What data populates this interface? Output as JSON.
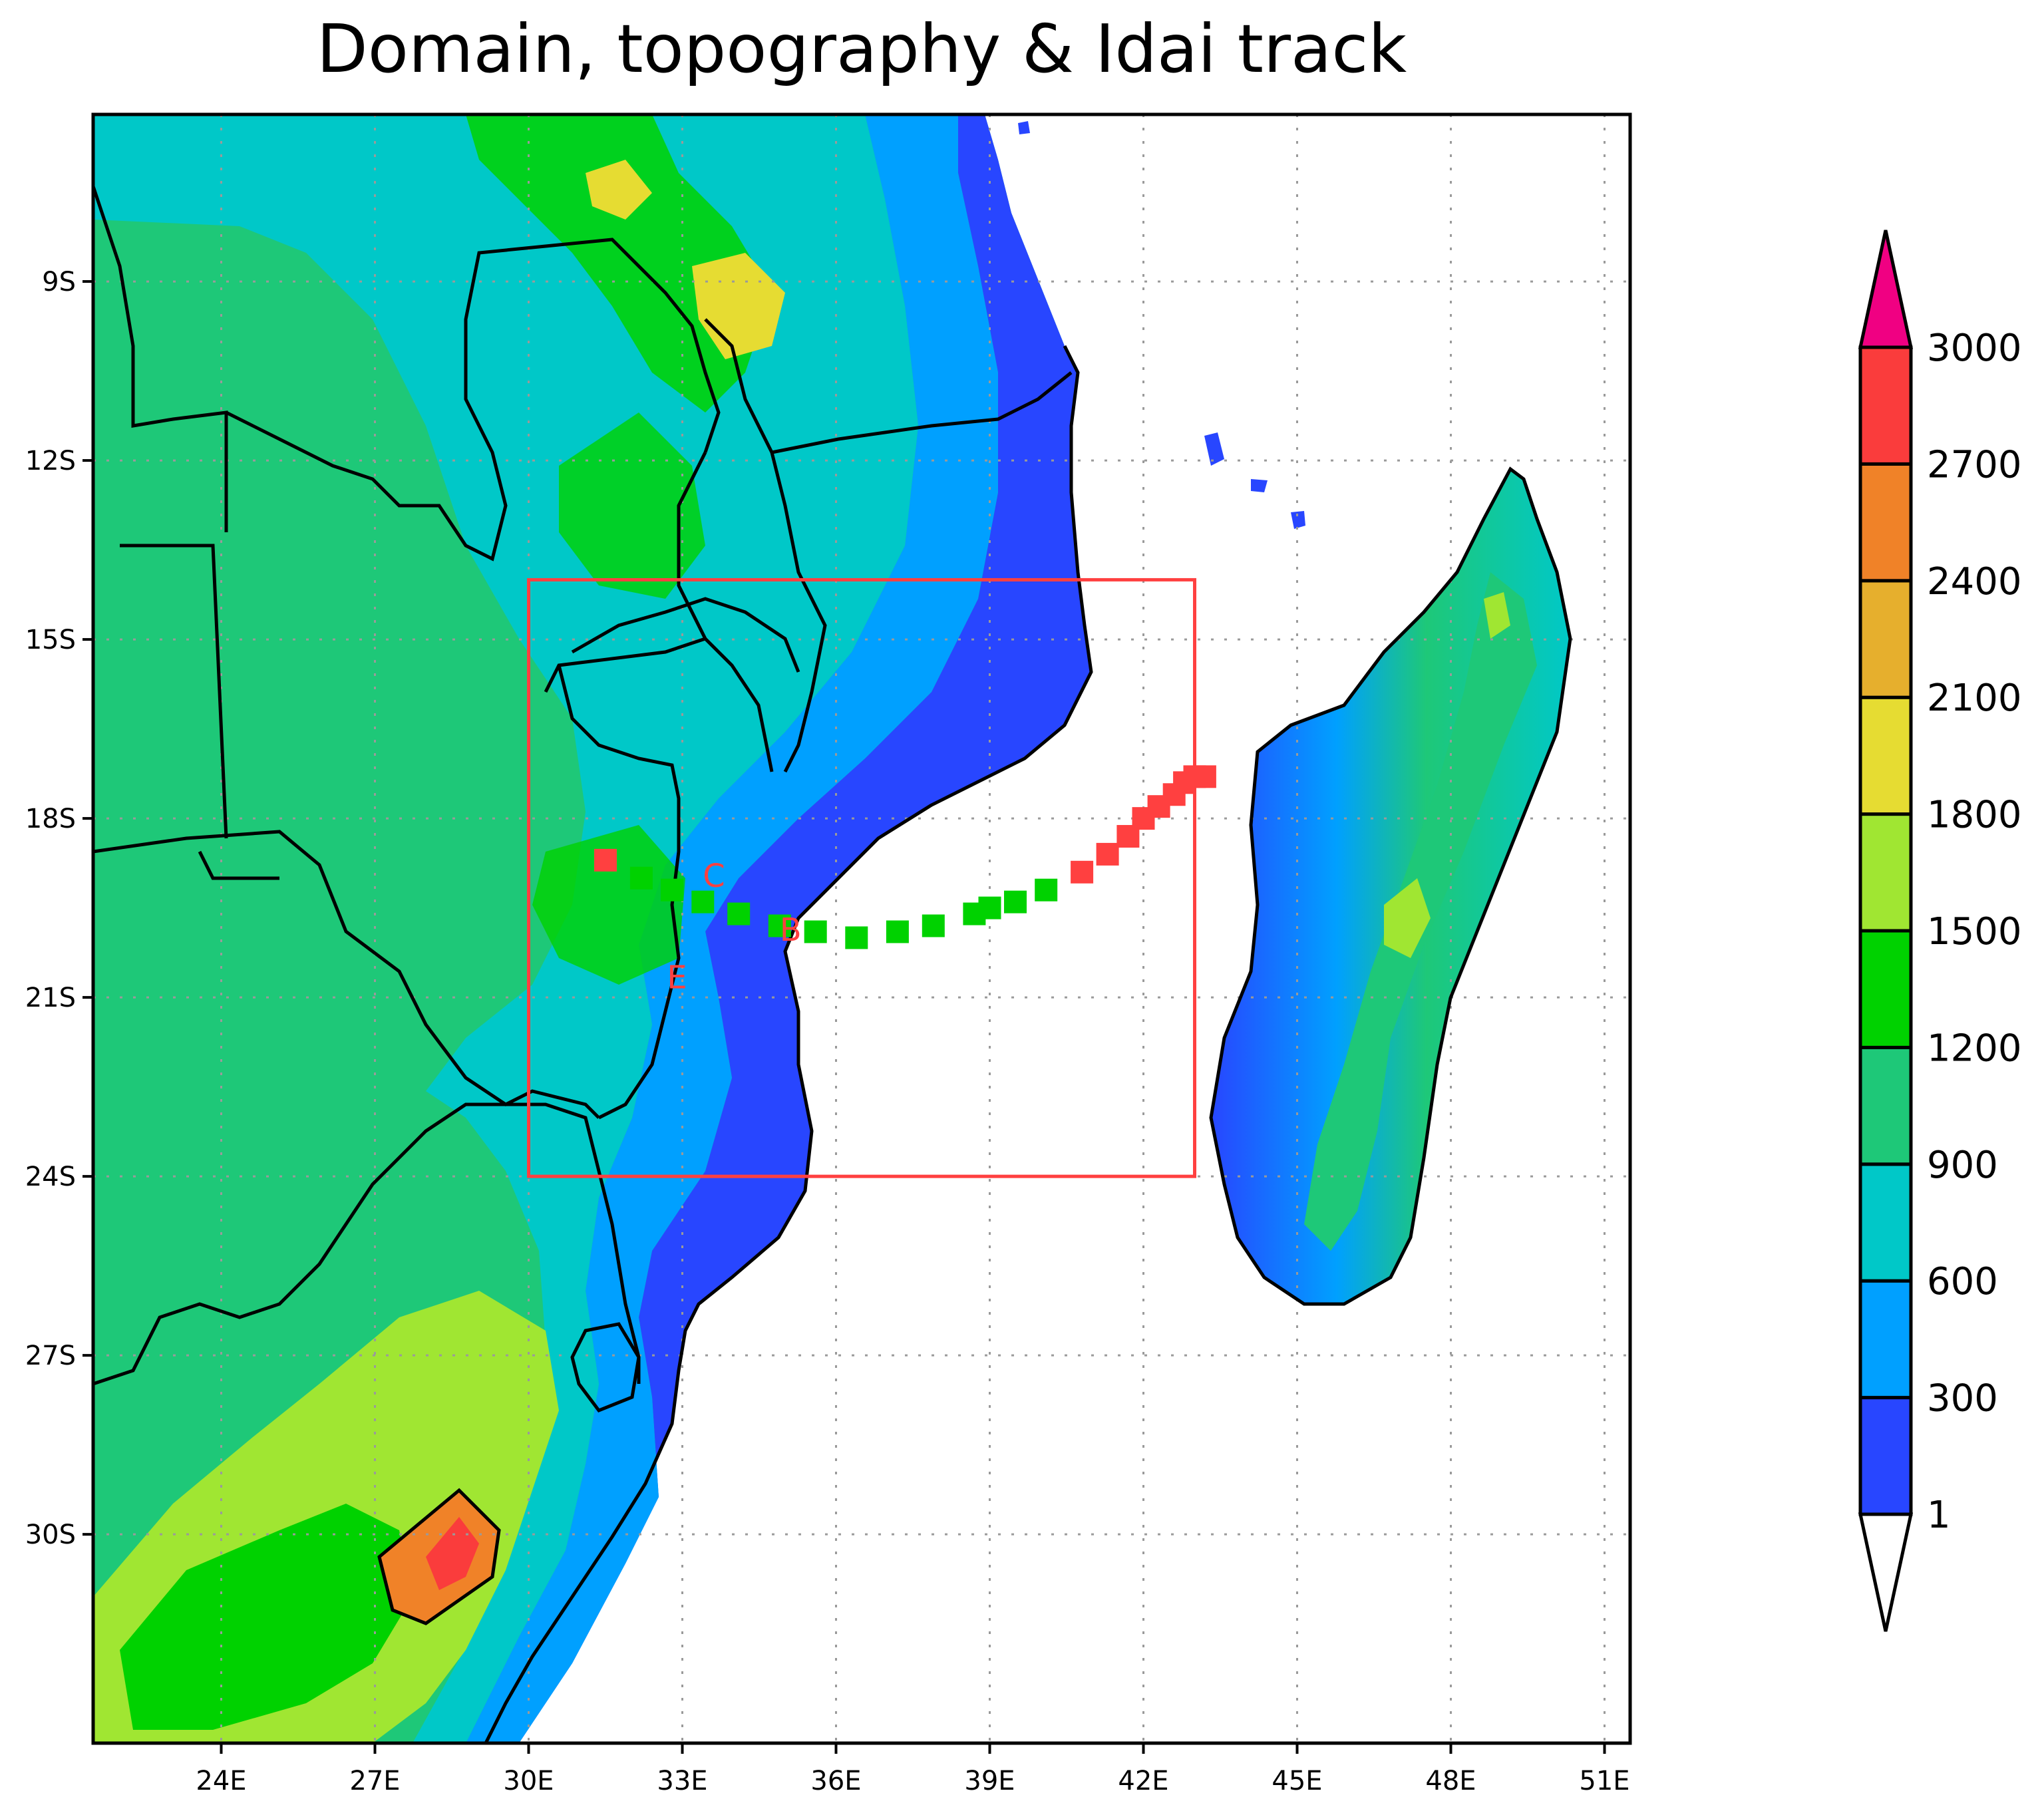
{
  "title": "Domain, topography & Idai track",
  "axes": {
    "x_tick_labels": [
      "24E",
      "27E",
      "30E",
      "33E",
      "36E",
      "39E",
      "42E",
      "45E",
      "48E",
      "51E"
    ],
    "y_tick_labels": [
      "9S",
      "12S",
      "15S",
      "18S",
      "21S",
      "24S",
      "27S",
      "30S"
    ],
    "lon_range": [
      21.5,
      51.5
    ],
    "lat_range": [
      -33.5,
      -6.2
    ],
    "grid": "dotted"
  },
  "colorbar": {
    "labels": [
      "1",
      "300",
      "600",
      "900",
      "1200",
      "1500",
      "1800",
      "2100",
      "2400",
      "2700",
      "3000"
    ],
    "colors": [
      "#2846ff",
      "#00a0ff",
      "#00c8c8",
      "#1ec878",
      "#00d200",
      "#a0e632",
      "#e6dc32",
      "#e6af2d",
      "#f08228",
      "#fa3c3c",
      "#f00082"
    ],
    "under_color": "#ffffff",
    "over_color": "#f00082",
    "extend": "both"
  },
  "domain_box": {
    "lon": [
      30,
      43
    ],
    "lat": [
      -24,
      -14
    ],
    "color": "#ff4040"
  },
  "track": {
    "letters": [
      "C",
      "B",
      "E"
    ],
    "red_color": "#ff4040",
    "green_color": "#00d200"
  }
}
